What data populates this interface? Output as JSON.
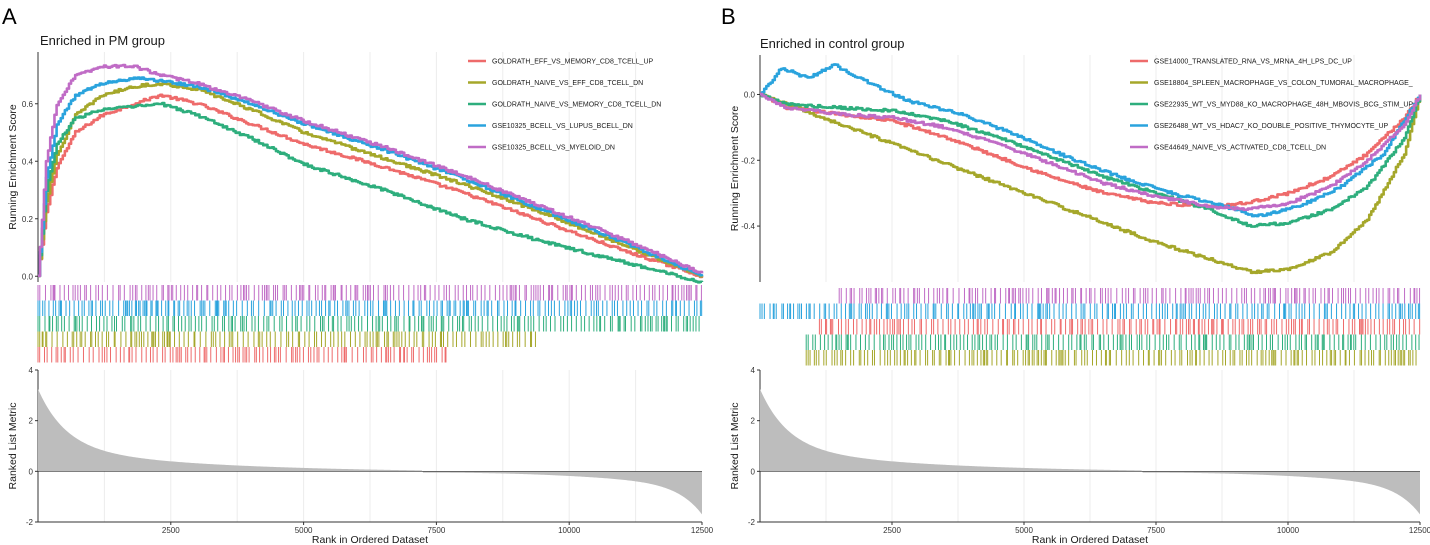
{
  "chart_data": [
    {
      "panel_letter": "A",
      "type": "line",
      "title": "Enriched in PM group",
      "xlabel": "Rank in Ordered Dataset",
      "ylabel_top": "Running Enrichment Score",
      "ylabel_bottom": "Ranked List Metric",
      "xlim": [
        0,
        12500
      ],
      "x_ticks": [
        2500,
        5000,
        7500,
        10000,
        12500
      ],
      "x_tick_labels": [
        "2500",
        "5000",
        "7500",
        "10000",
        "12500"
      ],
      "es_ylim": [
        -0.02,
        0.78
      ],
      "es_ticks": [
        0.0,
        0.2,
        0.4,
        0.6
      ],
      "es_tick_labels": [
        "0.0",
        "0.2",
        "0.4",
        "0.6"
      ],
      "metric_ylim": [
        -2,
        4
      ],
      "metric_ticks": [
        -2,
        0,
        2,
        4
      ],
      "metric_tick_labels": [
        "-2",
        "0",
        "2",
        "4"
      ],
      "legend_position": "top-right",
      "series": [
        {
          "name": "GOLDRATH_EFF_VS_MEMORY_CD8_TCELL_UP",
          "color": "#ee6b6b",
          "x": [
            0,
            150,
            350,
            700,
            1200,
            1800,
            2300,
            3000,
            4000,
            5000,
            6500,
            8000,
            9500,
            11000,
            12500
          ],
          "y": [
            0,
            0.22,
            0.38,
            0.5,
            0.56,
            0.6,
            0.63,
            0.6,
            0.53,
            0.46,
            0.38,
            0.29,
            0.19,
            0.09,
            0.0
          ],
          "hits_from": 0,
          "hits_to": 0.62,
          "hit_row": 4
        },
        {
          "name": "GOLDRATH_NAIVE_VS_EFF_CD8_TCELL_DN",
          "color": "#a5a72a",
          "x": [
            0,
            150,
            350,
            700,
            1200,
            1800,
            2300,
            3000,
            4000,
            5000,
            6500,
            8000,
            9500,
            11000,
            12500
          ],
          "y": [
            0,
            0.26,
            0.42,
            0.56,
            0.63,
            0.66,
            0.67,
            0.65,
            0.58,
            0.5,
            0.41,
            0.32,
            0.22,
            0.11,
            0.0
          ],
          "hits_from": 0,
          "hits_to": 0.75,
          "hit_row": 3
        },
        {
          "name": "GOLDRATH_NAIVE_VS_MEMORY_CD8_TCELL_DN",
          "color": "#2eae7d",
          "x": [
            0,
            150,
            350,
            700,
            1200,
            1800,
            2300,
            3000,
            4000,
            5000,
            6500,
            8000,
            9500,
            11000,
            12500
          ],
          "y": [
            0,
            0.3,
            0.46,
            0.55,
            0.58,
            0.59,
            0.6,
            0.56,
            0.48,
            0.39,
            0.3,
            0.2,
            0.12,
            0.05,
            -0.02
          ],
          "hits_from": 0,
          "hits_to": 1.0,
          "hit_row": 2
        },
        {
          "name": "GSE10325_BCELL_VS_LUPUS_BCELL_DN",
          "color": "#2aa3dd",
          "x": [
            0,
            150,
            350,
            700,
            1200,
            1800,
            2300,
            3000,
            4000,
            5000,
            6500,
            8000,
            9500,
            11000,
            12500
          ],
          "y": [
            0,
            0.34,
            0.53,
            0.63,
            0.67,
            0.69,
            0.68,
            0.66,
            0.6,
            0.53,
            0.44,
            0.34,
            0.23,
            0.12,
            0.0
          ],
          "hits_from": 0,
          "hits_to": 1.0,
          "hit_row": 1
        },
        {
          "name": "GSE10325_BCELL_VS_MYELOID_DN",
          "color": "#c06cc6",
          "x": [
            0,
            150,
            350,
            700,
            1200,
            1800,
            2300,
            3000,
            4000,
            5000,
            6500,
            8000,
            9500,
            11000,
            12500
          ],
          "y": [
            0,
            0.4,
            0.6,
            0.7,
            0.73,
            0.73,
            0.7,
            0.67,
            0.61,
            0.54,
            0.45,
            0.35,
            0.24,
            0.13,
            0.01
          ],
          "hits_from": 0,
          "hits_to": 1.0,
          "hit_row": 0
        }
      ]
    },
    {
      "panel_letter": "B",
      "type": "line",
      "title": "Enriched in control group",
      "xlabel": "Rank in Ordered Dataset",
      "ylabel_top": "Running Enrichment Score",
      "ylabel_bottom": "Ranked List Metric",
      "xlim": [
        0,
        12500
      ],
      "x_ticks": [
        2500,
        5000,
        7500,
        10000,
        12500
      ],
      "x_tick_labels": [
        "2500",
        "5000",
        "7500",
        "10000",
        "12500"
      ],
      "es_ylim": [
        -0.57,
        0.12
      ],
      "es_ticks": [
        0.0,
        -0.2,
        -0.4
      ],
      "es_tick_labels": [
        "0.0",
        "-0.2",
        "-0.4"
      ],
      "metric_ylim": [
        -2,
        4
      ],
      "metric_ticks": [
        -2,
        0,
        2,
        4
      ],
      "metric_tick_labels": [
        "-2",
        "0",
        "2",
        "4"
      ],
      "legend_position": "top-right",
      "series": [
        {
          "name": "GSE14000_TRANSLATED_RNA_VS_MRNA_4H_LPS_DC_UP",
          "color": "#ee6b6b",
          "x": [
            0,
            500,
            1500,
            2500,
            3500,
            4500,
            5500,
            6500,
            7500,
            8500,
            9200,
            10000,
            10800,
            11500,
            12200,
            12500
          ],
          "y": [
            0,
            -0.04,
            -0.06,
            -0.08,
            -0.13,
            -0.19,
            -0.25,
            -0.3,
            -0.33,
            -0.34,
            -0.33,
            -0.3,
            -0.25,
            -0.18,
            -0.07,
            0.0
          ],
          "hits_from": 0.09,
          "hits_to": 1.0,
          "hit_row": 2
        },
        {
          "name": "GSE18804_SPLEEN_MACROPHAGE_VS_COLON_TUMORAL_MACROPHAGE_",
          "color": "#a5a72a",
          "x": [
            0,
            500,
            1500,
            2500,
            3500,
            4500,
            5500,
            6500,
            7500,
            8500,
            9300,
            10000,
            10800,
            11500,
            12200,
            12500
          ],
          "y": [
            0,
            -0.03,
            -0.09,
            -0.15,
            -0.21,
            -0.27,
            -0.33,
            -0.39,
            -0.45,
            -0.5,
            -0.54,
            -0.53,
            -0.48,
            -0.38,
            -0.18,
            0.0
          ],
          "hits_from": 0.07,
          "hits_to": 1.0,
          "hit_row": 4
        },
        {
          "name": "GSE22935_WT_VS_MYD88_KO_MACROPHAGE_48H_MBOVIS_BCG_STIM_UP",
          "color": "#2eae7d",
          "x": [
            0,
            500,
            1500,
            2500,
            3500,
            4500,
            5500,
            6500,
            7500,
            8500,
            9300,
            10000,
            10800,
            11500,
            12200,
            12500
          ],
          "y": [
            0,
            -0.03,
            -0.04,
            -0.05,
            -0.08,
            -0.13,
            -0.19,
            -0.25,
            -0.3,
            -0.35,
            -0.4,
            -0.39,
            -0.35,
            -0.28,
            -0.13,
            0.0
          ],
          "hits_from": 0.07,
          "hits_to": 1.0,
          "hit_row": 3
        },
        {
          "name": "GSE26488_WT_VS_HDAC7_KO_DOUBLE_POSITIVE_THYMOCYTE_UP",
          "color": "#2aa3dd",
          "x": [
            0,
            400,
            900,
            1400,
            2000,
            2800,
            3800,
            4800,
            5800,
            6800,
            7800,
            8800,
            9400,
            10200,
            11000,
            11800,
            12500
          ],
          "y": [
            0,
            0.08,
            0.05,
            0.09,
            0.04,
            -0.02,
            -0.06,
            -0.12,
            -0.19,
            -0.25,
            -0.3,
            -0.34,
            -0.37,
            -0.34,
            -0.28,
            -0.18,
            0.0
          ],
          "hits_from": 0.0,
          "hits_to": 1.0,
          "hit_row": 1
        },
        {
          "name": "GSE44649_NAIVE_VS_ACTIVATED_CD8_TCELL_DN",
          "color": "#c06cc6",
          "x": [
            0,
            500,
            1500,
            2500,
            3500,
            4500,
            5500,
            6500,
            7500,
            8500,
            9200,
            10000,
            10800,
            11500,
            12200,
            12500
          ],
          "y": [
            0,
            -0.04,
            -0.06,
            -0.07,
            -0.1,
            -0.15,
            -0.21,
            -0.27,
            -0.31,
            -0.34,
            -0.35,
            -0.33,
            -0.28,
            -0.2,
            -0.09,
            0.0
          ],
          "hits_from": 0.12,
          "hits_to": 1.0,
          "hit_row": 0
        }
      ]
    }
  ]
}
